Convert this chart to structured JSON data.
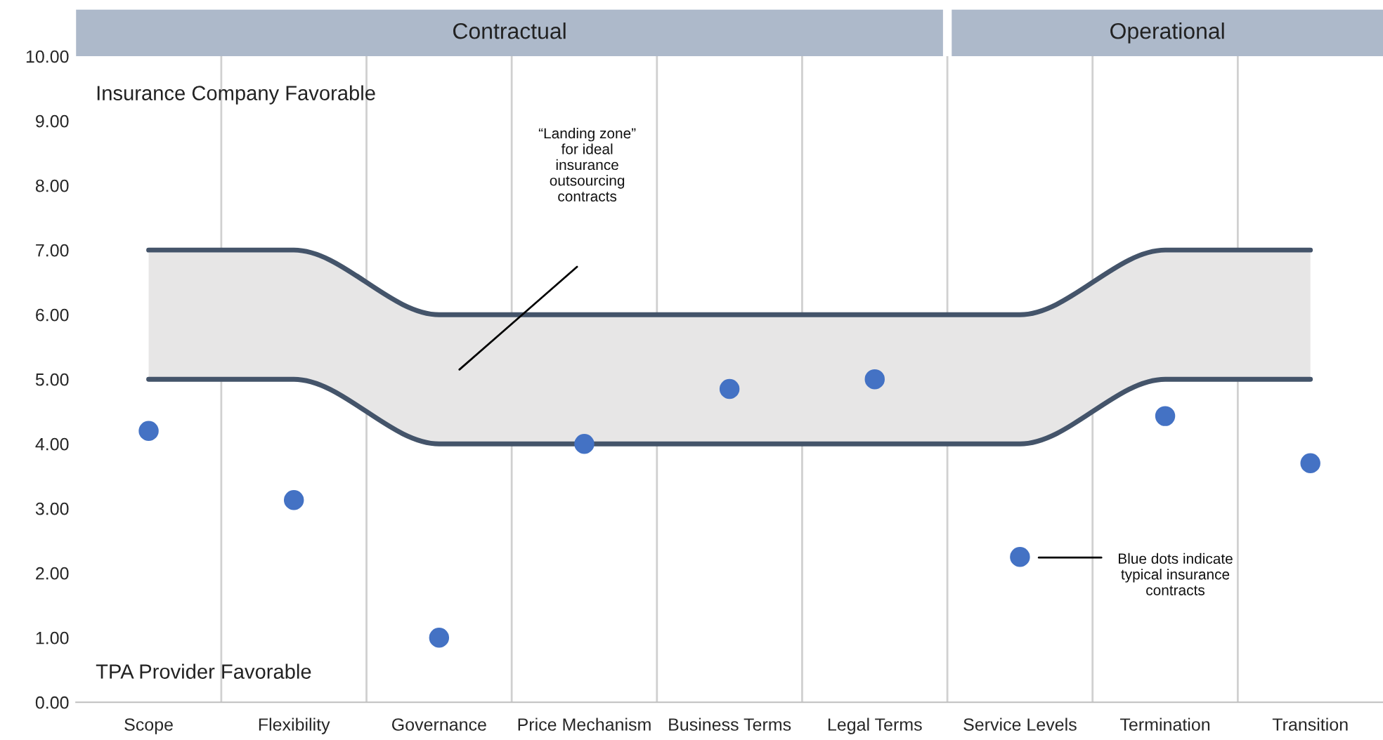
{
  "chart_data": {
    "type": "scatter",
    "categories": [
      "Scope",
      "Flexibility",
      "Governance",
      "Price Mechanism",
      "Business Terms",
      "Legal Terms",
      "Service Levels",
      "Termination",
      "Transition"
    ],
    "series": [
      {
        "type": "line",
        "color": "#44546a",
        "marker": "none",
        "values": [
          7,
          7,
          6,
          6,
          6,
          6,
          6,
          7,
          7
        ],
        "lower": [
          5,
          5,
          4,
          4,
          4,
          4,
          4,
          5,
          5
        ],
        "upper": [
          7,
          7,
          6,
          6,
          6,
          6,
          6,
          7,
          7
        ]
      },
      {
        "type": "line",
        "color": "#44546a",
        "marker": "none",
        "values": [
          5,
          5,
          4,
          4,
          4,
          4,
          4,
          5,
          5
        ]
      },
      {
        "color": "#4472c4",
        "marker": "circle",
        "values": [
          4.2,
          3.13,
          1.0,
          4.0,
          4.85,
          5.0,
          2.25,
          4.43,
          3.7
        ]
      }
    ],
    "ylim": [
      0,
      10
    ],
    "yticks": [
      {
        "value": 0,
        "label": "0.00"
      },
      {
        "value": 1,
        "label": "1.00"
      },
      {
        "value": 2,
        "label": "2.00"
      },
      {
        "value": 3,
        "label": "3.00"
      },
      {
        "value": 4,
        "label": "4.00"
      },
      {
        "value": 5,
        "label": "5.00"
      },
      {
        "value": 6,
        "label": "6.00"
      },
      {
        "value": 7,
        "label": "7.00"
      },
      {
        "value": 8,
        "label": "8.00"
      },
      {
        "value": 9,
        "label": "9.00"
      },
      {
        "value": 10,
        "label": "10.00"
      }
    ],
    "annotations": [
      "Contractual",
      "Operational",
      "Insurance Company Favorable",
      "TPA Provider Favorable",
      "“Landing zone”\nfor ideal\ninsurance\noutsourcing\ncontracts",
      "Blue dots indicate\ntypical insurance\ncontracts"
    ],
    "grid": "x"
  }
}
